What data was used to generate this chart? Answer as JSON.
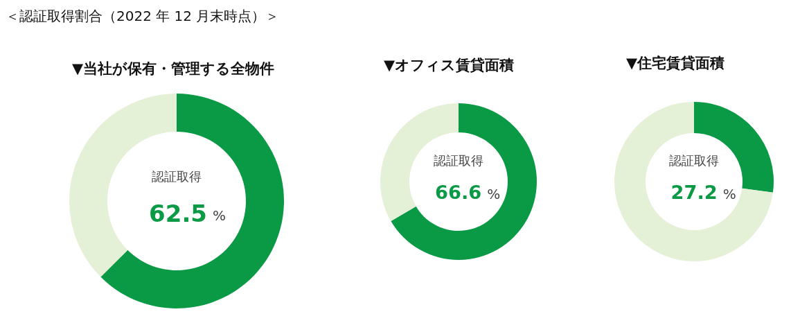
{
  "chart_data": [
    {
      "type": "donut",
      "title": "＜認証取得割合（2022 年 12 月末時点）＞",
      "subtitle": "▼当社が保有・管理する全物件",
      "categories": [
        "認証取得",
        null
      ],
      "values": [
        62.5,
        37.5
      ],
      "colors": [
        "#0a9a46",
        "#e4f1d7"
      ],
      "value_labels": [
        "62.5 %",
        null
      ]
    },
    {
      "type": "donut",
      "title": "▼オフィス賃貸面積",
      "categories": [
        "認証取得",
        null
      ],
      "values": [
        66.6,
        33.4
      ],
      "colors": [
        "#0a9a46",
        "#e4f1d7"
      ],
      "value_labels": [
        "66.6 %",
        null
      ]
    },
    {
      "type": "donut",
      "title": "▼住宅賃貸面積",
      "categories": [
        "認証取得",
        null
      ],
      "values": [
        27.2,
        72.8
      ],
      "colors": [
        "#0a9a46",
        "#e4f1d7"
      ],
      "value_labels": [
        "27.2 %",
        null
      ]
    }
  ]
}
